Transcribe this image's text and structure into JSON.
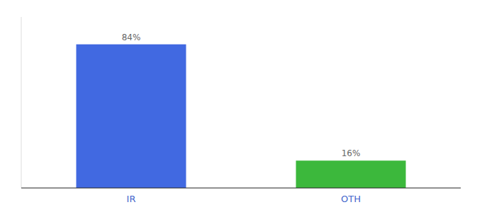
{
  "chart_data": {
    "type": "bar",
    "categories": [
      "IR",
      "OTH"
    ],
    "values": [
      84,
      16
    ],
    "value_labels": [
      "84%",
      "16%"
    ],
    "colors": [
      "#4169e1",
      "#3cb83c"
    ],
    "ylim": [
      0,
      100
    ],
    "data_labels": true,
    "tick_labels": "x"
  }
}
